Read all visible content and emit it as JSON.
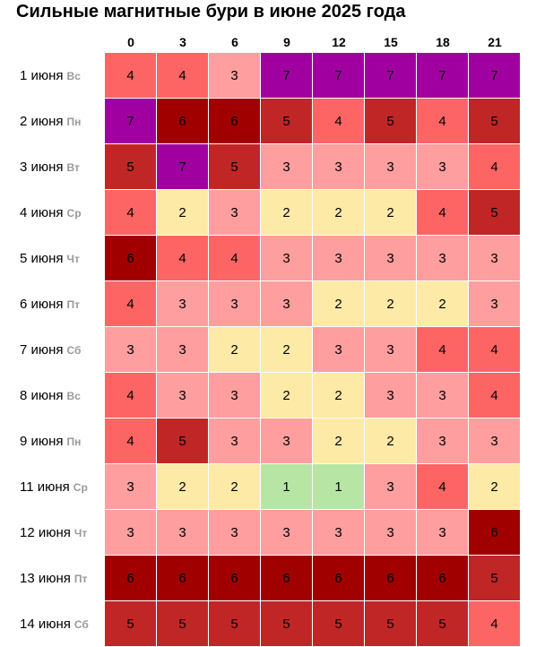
{
  "title": "Сильные магнитные бури в июне 2025 года",
  "colors": {
    "1": "#b7e6a4",
    "2": "#fdeaa6",
    "3": "#fe9e9e",
    "4": "#fd6565",
    "5": "#c12626",
    "6": "#a10000",
    "7": "#a000a0"
  },
  "chart_data": {
    "type": "heatmap",
    "title": "Сильные магнитные бури в июне 2025 года",
    "x": [
      "0",
      "3",
      "6",
      "9",
      "12",
      "15",
      "18",
      "21"
    ],
    "rows": [
      {
        "date": "1 июня",
        "weekday": "Вс",
        "values": [
          4,
          4,
          3,
          7,
          7,
          7,
          7,
          7
        ]
      },
      {
        "date": "2 июня",
        "weekday": "Пн",
        "values": [
          7,
          6,
          6,
          5,
          4,
          5,
          4,
          5
        ]
      },
      {
        "date": "3 июня",
        "weekday": "Вт",
        "values": [
          5,
          7,
          5,
          3,
          3,
          3,
          3,
          4
        ]
      },
      {
        "date": "4 июня",
        "weekday": "Ср",
        "values": [
          4,
          2,
          3,
          2,
          2,
          2,
          4,
          5
        ]
      },
      {
        "date": "5 июня",
        "weekday": "Чт",
        "values": [
          6,
          4,
          4,
          3,
          3,
          3,
          3,
          3
        ]
      },
      {
        "date": "6 июня",
        "weekday": "Пт",
        "values": [
          4,
          3,
          3,
          3,
          2,
          2,
          2,
          3
        ]
      },
      {
        "date": "7 июня",
        "weekday": "Сб",
        "values": [
          3,
          3,
          2,
          2,
          3,
          3,
          4,
          4
        ]
      },
      {
        "date": "8 июня",
        "weekday": "Вс",
        "values": [
          4,
          3,
          3,
          2,
          2,
          3,
          3,
          4
        ]
      },
      {
        "date": "9 июня",
        "weekday": "Пн",
        "values": [
          4,
          5,
          3,
          3,
          2,
          2,
          3,
          3
        ]
      },
      {
        "date": "11 июня",
        "weekday": "Ср",
        "values": [
          3,
          2,
          2,
          1,
          1,
          3,
          4,
          2
        ]
      },
      {
        "date": "12 июня",
        "weekday": "Чт",
        "values": [
          3,
          3,
          3,
          3,
          3,
          3,
          3,
          6
        ]
      },
      {
        "date": "13 июня",
        "weekday": "Пт",
        "values": [
          6,
          6,
          6,
          6,
          6,
          6,
          6,
          5
        ]
      },
      {
        "date": "14 июня",
        "weekday": "Сб",
        "values": [
          5,
          5,
          5,
          5,
          5,
          5,
          5,
          4
        ]
      }
    ]
  }
}
